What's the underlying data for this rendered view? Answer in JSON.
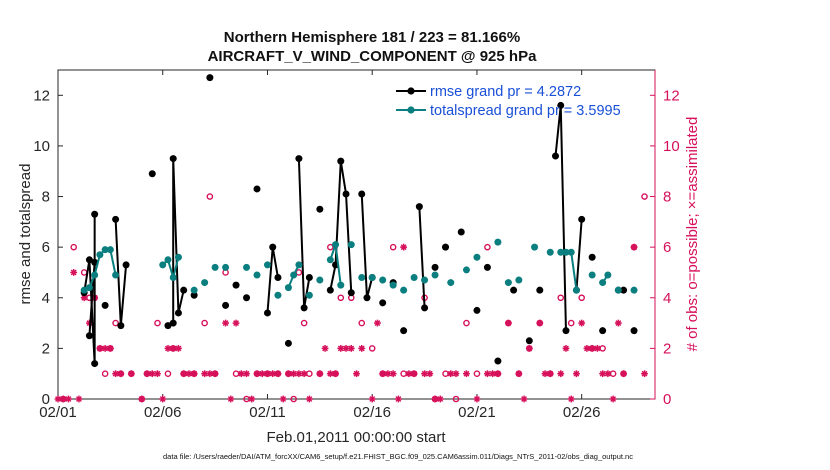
{
  "chart_data": {
    "type": "line",
    "title": "Northern Hemisphere 181 / 223 = 81.166%",
    "subtitle": "AIRCRAFT_V_WIND_COMPONENT @ 925 hPa",
    "xlabel": "Feb.01,2011 00:00:00 start",
    "ylabel_left": "rmse and totalspread",
    "ylabel_right": "# of obs: o=possible; ×=assimilated",
    "xlim": [
      0,
      28.5
    ],
    "ylim_left": [
      0,
      13
    ],
    "ylim_right": [
      0,
      13
    ],
    "x_tick_labels": [
      {
        "x": 0,
        "label": "02/01"
      },
      {
        "x": 5,
        "label": "02/06"
      },
      {
        "x": 10,
        "label": "02/11"
      },
      {
        "x": 15,
        "label": "02/16"
      },
      {
        "x": 20,
        "label": "02/21"
      },
      {
        "x": 25,
        "label": "02/26"
      }
    ],
    "y_ticks_left": [
      0,
      2,
      4,
      6,
      8,
      10,
      12
    ],
    "y_ticks_right": [
      0,
      2,
      4,
      6,
      8,
      10,
      12
    ],
    "colors": {
      "rmse": "#000000",
      "spread": "#0b7f7f",
      "obs": "#d6105a",
      "legend_text": "#1a4fd8"
    },
    "series": [
      {
        "name": "rmse grand pr = 4.2872",
        "axis": "left",
        "x": [
          1.25,
          1.5,
          1.75,
          1.75,
          1.5,
          1.75,
          2.25,
          2.75,
          3.0,
          3.25,
          4.5,
          5.25,
          5.5,
          5.5,
          5.75,
          6.0,
          6.5,
          7.25,
          8.0,
          8.5,
          9.0,
          9.5,
          10.0,
          10.25,
          10.5,
          11.0,
          11.5,
          11.75,
          12.0,
          12.5,
          13.0,
          13.25,
          13.5,
          13.75,
          14.0,
          14.5,
          14.75,
          15.0,
          15.5,
          16.0,
          16.5,
          17.25,
          17.5,
          18.0,
          18.5,
          19.25,
          20.0,
          20.5,
          21.0,
          21.75,
          22.5,
          23.0,
          23.75,
          24.0,
          24.25,
          24.75,
          25.0,
          25.5,
          26.0,
          26.75,
          27.0,
          27.5
        ],
        "y": [
          4.2,
          5.5,
          1.4,
          7.3,
          2.5,
          5.4,
          3.7,
          7.1,
          2.9,
          5.3,
          8.9,
          2.9,
          3.0,
          9.5,
          3.4,
          4.3,
          4.1,
          12.7,
          3.7,
          4.5,
          4.0,
          8.3,
          3.4,
          6.0,
          4.8,
          2.2,
          9.5,
          3.6,
          4.8,
          7.5,
          4.3,
          5.3,
          9.4,
          8.1,
          4.2,
          8.1,
          4.0,
          4.8,
          3.8,
          4.6,
          2.7,
          7.6,
          3.6,
          5.2,
          6.0,
          6.6,
          3.5,
          5.2,
          1.5,
          4.3,
          2.3,
          4.3,
          9.6,
          11.6,
          2.7,
          4.3,
          7.1,
          5.6,
          2.7,
          4.3,
          4.3,
          2.7
        ]
      },
      {
        "name": "totalspread grand pr = 3.5995",
        "axis": "left",
        "x": [
          1.25,
          1.5,
          1.75,
          2.0,
          2.25,
          2.5,
          2.75,
          5.0,
          5.25,
          5.5,
          5.75,
          6.5,
          7.0,
          7.5,
          8.0,
          9.0,
          9.5,
          10.0,
          10.5,
          11.0,
          11.25,
          11.5,
          12.0,
          12.5,
          13.0,
          13.25,
          13.5,
          14.0,
          14.5,
          15.0,
          15.5,
          16.0,
          16.5,
          17.0,
          17.5,
          18.0,
          18.75,
          19.5,
          20.0,
          21.0,
          21.5,
          22.0,
          22.75,
          23.5,
          24.0,
          24.25,
          24.5,
          24.75,
          25.5,
          26.0,
          26.25,
          26.75,
          27.5
        ],
        "y": [
          4.3,
          4.4,
          4.9,
          5.7,
          5.9,
          5.9,
          4.9,
          5.3,
          5.5,
          4.8,
          5.6,
          4.3,
          4.6,
          5.2,
          5.2,
          5.2,
          4.9,
          5.3,
          4.1,
          4.4,
          4.9,
          5.3,
          4.1,
          4.7,
          5.5,
          6.1,
          4.5,
          6.1,
          4.8,
          4.8,
          4.7,
          4.5,
          4.3,
          4.8,
          4.7,
          4.9,
          4.6,
          5.1,
          5.6,
          6.2,
          4.6,
          4.7,
          6.0,
          5.8,
          5.8,
          5.8,
          5.8,
          4.3,
          4.9,
          4.6,
          4.9,
          4.3,
          4.3
        ]
      },
      {
        "name": "obs possible",
        "axis": "right",
        "x": [
          0.25,
          0.75,
          1.25,
          1.5,
          1.75,
          2.0,
          2.25,
          2.5,
          2.75,
          3.0,
          3.5,
          4.0,
          4.25,
          4.75,
          5.25,
          5.5,
          6.0,
          6.5,
          7.0,
          7.25,
          7.5,
          8.0,
          8.5,
          9.0,
          9.5,
          10.0,
          10.5,
          11.0,
          11.25,
          11.5,
          11.75,
          12.0,
          12.5,
          13.0,
          13.25,
          13.5,
          14.0,
          14.5,
          15.0,
          15.5,
          16.0,
          16.5,
          17.0,
          17.5,
          18.0,
          18.5,
          19.0,
          19.5,
          20.0,
          20.5,
          21.0,
          21.5,
          22.0,
          22.5,
          23.0,
          23.5,
          24.0,
          24.5,
          25.0,
          25.5,
          26.0,
          26.5,
          27.0,
          27.5,
          28.0
        ],
        "y": [
          0,
          6,
          5,
          4,
          4,
          2,
          1,
          2,
          3,
          1,
          1,
          0,
          1,
          3,
          1,
          2,
          1,
          1,
          3,
          8,
          1,
          5,
          1,
          0,
          1,
          1,
          1,
          1,
          0,
          5,
          3,
          1,
          1,
          6,
          1,
          4,
          4,
          3,
          2,
          1,
          6,
          1,
          1,
          4,
          0,
          1,
          0,
          3,
          1,
          6,
          1,
          3,
          1,
          2,
          3,
          1,
          4,
          3,
          4,
          2,
          2,
          1,
          1,
          6,
          8
        ]
      },
      {
        "name": "obs assimilated",
        "axis": "right",
        "x": [
          0.0,
          0.25,
          0.5,
          0.75,
          1.0,
          1.25,
          1.5,
          1.75,
          2.0,
          2.25,
          2.5,
          2.75,
          3.0,
          3.5,
          4.0,
          4.25,
          4.5,
          4.75,
          5.0,
          5.25,
          5.5,
          5.75,
          6.0,
          6.25,
          6.5,
          7.0,
          7.25,
          7.5,
          8.0,
          8.25,
          8.5,
          8.75,
          9.0,
          9.25,
          9.5,
          9.75,
          10.0,
          10.25,
          10.5,
          10.75,
          11.0,
          11.25,
          11.5,
          11.75,
          12.0,
          12.5,
          12.75,
          13.0,
          13.25,
          13.5,
          13.75,
          14.0,
          14.25,
          14.5,
          15.0,
          15.25,
          15.5,
          15.75,
          16.0,
          16.25,
          16.5,
          16.75,
          17.0,
          17.5,
          17.75,
          18.0,
          18.25,
          18.5,
          18.75,
          19.0,
          19.5,
          20.0,
          20.5,
          20.75,
          21.0,
          21.5,
          22.0,
          22.25,
          22.5,
          23.0,
          23.25,
          23.5,
          24.0,
          24.25,
          24.5,
          24.75,
          25.0,
          25.25,
          25.5,
          25.75,
          26.0,
          26.25,
          26.5,
          26.75,
          27.0,
          27.5,
          28.0
        ],
        "y": [
          0,
          0,
          0,
          5,
          0,
          4,
          3,
          4,
          2,
          2,
          2,
          1,
          1,
          1,
          0,
          1,
          1,
          1,
          0,
          2,
          2,
          2,
          1,
          1,
          1,
          1,
          1,
          1,
          3,
          0,
          3,
          1,
          1,
          0,
          1,
          1,
          1,
          1,
          1,
          0,
          1,
          1,
          1,
          1,
          0,
          1,
          2,
          1,
          1,
          2,
          2,
          2,
          1,
          2,
          0,
          3,
          1,
          1,
          1,
          0,
          6,
          1,
          1,
          1,
          1,
          0,
          0,
          6,
          1,
          1,
          1,
          0,
          1,
          1,
          1,
          3,
          1,
          0,
          2,
          3,
          1,
          1,
          1,
          2,
          0,
          1,
          3,
          2,
          2,
          2,
          1,
          1,
          0,
          3,
          1,
          6,
          1
        ]
      }
    ]
  },
  "footer": "data file: /Users/raeder/DAI/ATM_forcXX/CAM6_setup/f.e21.FHIST_BGC.f09_025.CAM6assim.011/Diags_NTrS_2011-02/obs_diag_output.nc"
}
